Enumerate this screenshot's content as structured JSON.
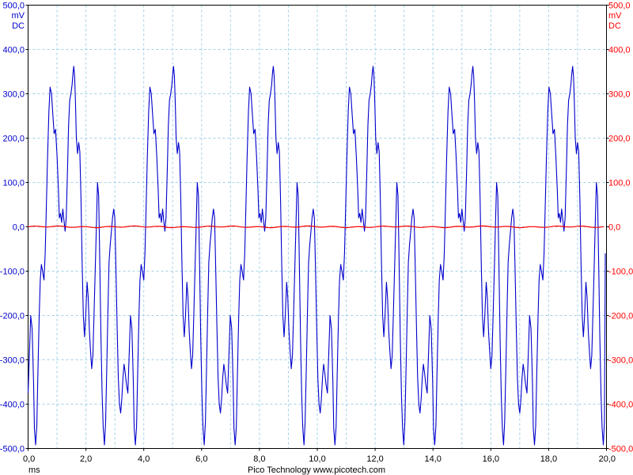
{
  "chart_data": {
    "type": "line",
    "xlabel": "ms",
    "xlim": [
      0,
      20
    ],
    "x_ticks": [
      "0,0",
      "2,0",
      "4,0",
      "6,0",
      "8,0",
      "10,0",
      "12,0",
      "14,0",
      "16,0",
      "18,0",
      "20,0"
    ],
    "ylim": [
      -500,
      500
    ],
    "y_ticks": [
      "500,0",
      "400,0",
      "300,0",
      "200,0",
      "100,0",
      "0,0",
      "-100,0",
      "-200,0",
      "-300,0",
      "-400,0",
      "-500,0"
    ],
    "left_axis": {
      "unit": "mV",
      "coupling": "DC",
      "color": "#0000cc"
    },
    "right_axis": {
      "color": "#ff0000"
    },
    "grid": true,
    "grid_color": "#9fd1e6",
    "footer": "Pico Technology  www.picotech.com",
    "period_ms": 3.45,
    "series": [
      {
        "color": "#0000cc",
        "comment": "one period of the channel A waveform (mV), repeated every period_ms",
        "x": [
          0.0,
          0.05,
          0.09,
          0.14,
          0.19,
          0.22,
          0.26,
          0.3,
          0.34,
          0.38,
          0.42,
          0.46,
          0.5,
          0.55,
          0.59,
          0.63,
          0.67,
          0.72,
          0.76,
          0.81,
          0.86,
          0.9,
          0.95,
          1.0,
          1.05,
          1.08,
          1.12,
          1.16,
          1.2,
          1.24,
          1.28,
          1.32,
          1.36,
          1.4,
          1.44,
          1.48,
          1.52,
          1.55,
          1.58,
          1.61,
          1.64,
          1.67,
          1.71,
          1.75,
          1.79,
          1.83,
          1.87,
          1.91,
          1.95,
          1.99,
          2.04,
          2.08,
          2.12,
          2.16,
          2.2,
          2.24,
          2.28,
          2.32,
          2.36,
          2.4,
          2.44,
          2.48,
          2.52,
          2.56,
          2.6,
          2.64,
          2.68,
          2.72,
          2.76,
          2.8,
          2.84,
          2.88,
          2.92,
          2.96,
          3.0,
          3.04,
          3.08,
          3.12,
          3.16,
          3.2,
          3.24,
          3.28,
          3.32,
          3.36,
          3.4,
          3.45
        ],
        "y": [
          -375,
          -280,
          -200,
          -230,
          -350,
          -455,
          -492,
          -450,
          -330,
          -210,
          -120,
          -85,
          -100,
          -120,
          -60,
          40,
          150,
          260,
          315,
          300,
          250,
          210,
          220,
          160,
          80,
          20,
          30,
          10,
          40,
          15,
          -10,
          20,
          120,
          230,
          285,
          300,
          320,
          345,
          362,
          340,
          280,
          200,
          165,
          190,
          170,
          60,
          -80,
          -200,
          -248,
          -205,
          -125,
          -160,
          -235,
          -280,
          -320,
          -290,
          -200,
          -100,
          0,
          100,
          70,
          -80,
          -250,
          -380,
          -455,
          -492,
          -440,
          -320,
          -190,
          -80,
          -40,
          -10,
          20,
          40,
          20,
          -100,
          -230,
          -340,
          -400,
          -420,
          -390,
          -340,
          -310,
          -330,
          -355,
          -375
        ]
      },
      {
        "color": "#ff0000",
        "comment": "channel B flat at approximately 0 mV",
        "x": [
          0,
          20
        ],
        "y": [
          0,
          0
        ]
      }
    ]
  }
}
